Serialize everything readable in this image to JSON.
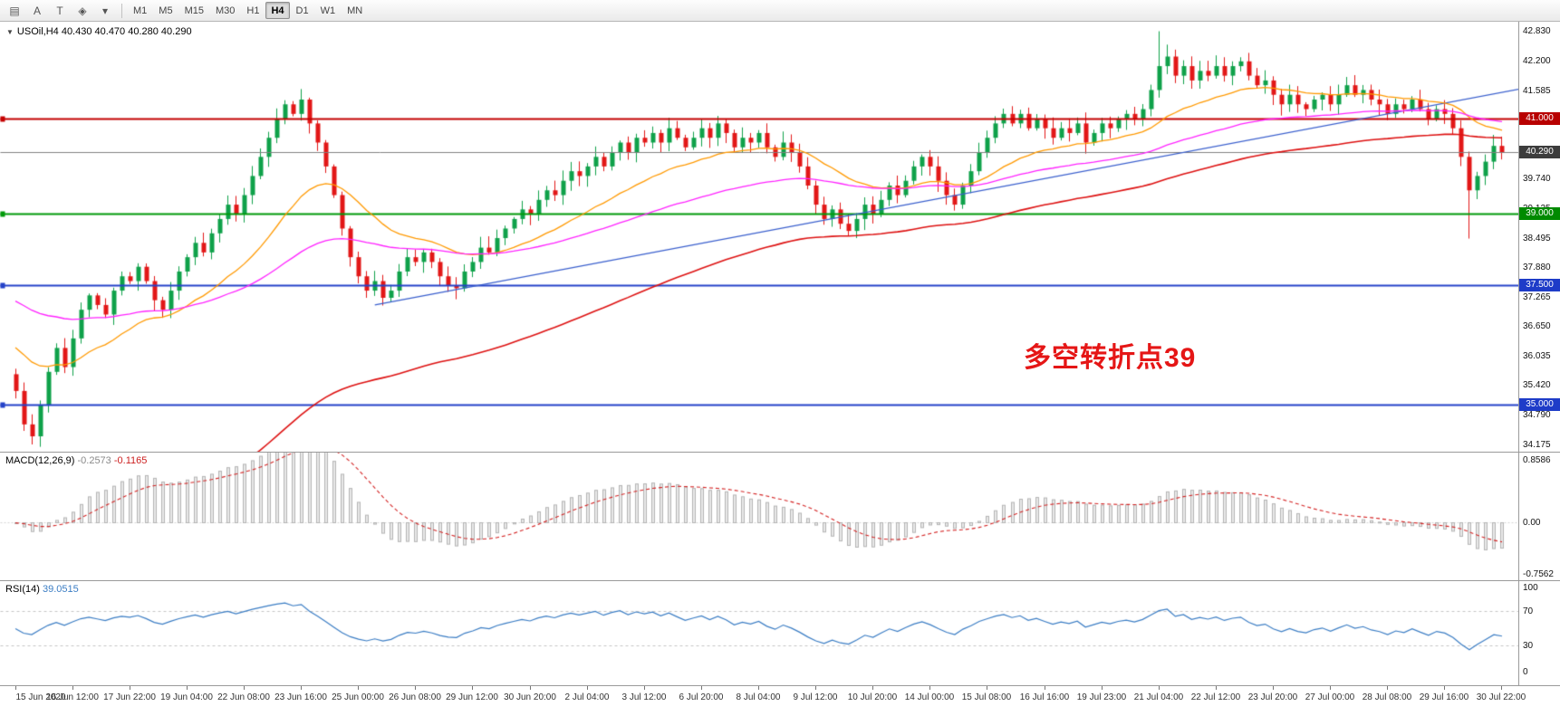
{
  "toolbar": {
    "icons": [
      {
        "name": "charts-icon",
        "glyph": "▤"
      },
      {
        "name": "cursor-a-icon",
        "glyph": "A"
      },
      {
        "name": "text-tool-icon",
        "glyph": "T"
      },
      {
        "name": "draw-objects-icon",
        "glyph": "◈"
      },
      {
        "name": "dropdown-arrow-icon",
        "glyph": "▾"
      }
    ],
    "timeframes": [
      {
        "label": "M1",
        "active": false
      },
      {
        "label": "M5",
        "active": false
      },
      {
        "label": "M15",
        "active": false
      },
      {
        "label": "M30",
        "active": false
      },
      {
        "label": "H1",
        "active": false
      },
      {
        "label": "H4",
        "active": true
      },
      {
        "label": "D1",
        "active": false
      },
      {
        "label": "W1",
        "active": false
      },
      {
        "label": "MN",
        "active": false
      }
    ]
  },
  "main_chart": {
    "legend_arrow": "▼",
    "legend_text": "USOil,H4 40.430 40.470 40.280 40.290",
    "annotation": "多空转折点39",
    "price_tags": [
      {
        "value": 41.0,
        "text": "41.000",
        "bg": "#b80000"
      },
      {
        "value": 40.29,
        "text": "40.290",
        "bg": "#3c3c3c"
      },
      {
        "value": 39.0,
        "text": "39.000",
        "bg": "#008a00"
      },
      {
        "value": 37.5,
        "text": "37.500",
        "bg": "#1e3cc8"
      },
      {
        "value": 35.0,
        "text": "35.000",
        "bg": "#1e3cc8"
      }
    ]
  },
  "macd_panel": {
    "name": "MACD(12,26,9)",
    "value1": "-0.2573",
    "value2": "-0.1165",
    "axis": [
      "0.8586",
      "0.00",
      "-0.7562"
    ]
  },
  "rsi_panel": {
    "name": "RSI(14)",
    "value": "39.0515",
    "axis": [
      {
        "text": "100",
        "v": 100
      },
      {
        "text": "70",
        "v": 70
      },
      {
        "text": "30",
        "v": 30
      },
      {
        "text": "0",
        "v": 0
      }
    ]
  },
  "chart_data": {
    "type": "candlestick",
    "symbol": "USOil",
    "timeframe": "H4",
    "last_ohlc": {
      "open": 40.43,
      "high": 40.47,
      "low": 40.28,
      "close": 40.29
    },
    "current_price": 40.29,
    "closes": [
      35.3,
      34.6,
      34.35,
      35.0,
      35.7,
      36.2,
      35.8,
      36.4,
      37.0,
      37.3,
      37.1,
      36.9,
      37.4,
      37.7,
      37.6,
      37.9,
      37.6,
      37.2,
      37.0,
      37.4,
      37.8,
      38.1,
      38.4,
      38.2,
      38.6,
      38.9,
      39.2,
      39.0,
      39.4,
      39.8,
      40.2,
      40.6,
      41.0,
      41.3,
      41.1,
      41.4,
      40.9,
      40.5,
      40.0,
      39.4,
      38.7,
      38.1,
      37.7,
      37.4,
      37.6,
      37.25,
      37.4,
      37.8,
      38.1,
      38.0,
      38.2,
      38.0,
      37.7,
      37.5,
      37.45,
      37.8,
      38.0,
      38.3,
      38.2,
      38.5,
      38.7,
      38.9,
      39.1,
      39.0,
      39.3,
      39.5,
      39.4,
      39.7,
      39.9,
      39.8,
      40.0,
      40.2,
      40.0,
      40.3,
      40.5,
      40.3,
      40.6,
      40.5,
      40.7,
      40.5,
      40.8,
      40.6,
      40.4,
      40.6,
      40.8,
      40.6,
      40.9,
      40.7,
      40.4,
      40.6,
      40.5,
      40.7,
      40.4,
      40.2,
      40.5,
      40.3,
      40.0,
      39.6,
      39.2,
      38.9,
      39.1,
      38.8,
      38.65,
      38.9,
      39.2,
      39.0,
      39.3,
      39.6,
      39.4,
      39.7,
      40.0,
      40.2,
      40.0,
      39.7,
      39.4,
      39.2,
      39.6,
      39.9,
      40.3,
      40.6,
      40.9,
      41.1,
      40.9,
      41.1,
      40.8,
      41.0,
      40.8,
      40.6,
      40.8,
      40.7,
      40.9,
      40.5,
      40.7,
      40.9,
      40.8,
      41.0,
      41.1,
      41.0,
      41.2,
      41.6,
      42.1,
      42.3,
      41.9,
      42.1,
      41.8,
      42.0,
      41.9,
      42.1,
      41.9,
      42.1,
      42.2,
      41.9,
      41.7,
      41.8,
      41.5,
      41.3,
      41.5,
      41.3,
      41.2,
      41.4,
      41.5,
      41.3,
      41.5,
      41.7,
      41.5,
      41.6,
      41.4,
      41.3,
      41.1,
      41.3,
      41.2,
      41.4,
      41.2,
      41.0,
      41.2,
      41.1,
      40.8,
      40.2,
      39.5,
      39.8,
      40.1,
      40.43,
      40.29
    ],
    "spikes": [
      {
        "i": 2,
        "low": 34.18
      },
      {
        "i": 35,
        "high": 41.62
      },
      {
        "i": 45,
        "low": 37.12
      },
      {
        "i": 54,
        "low": 37.36
      },
      {
        "i": 102,
        "low": 38.55
      },
      {
        "i": 140,
        "high": 42.83
      },
      {
        "i": 141,
        "high": 42.55
      },
      {
        "i": 178,
        "low": 38.49
      }
    ],
    "hlines": [
      {
        "price": 41.0,
        "color": "#c40000",
        "width": 2
      },
      {
        "price": 39.0,
        "color": "#009a0a",
        "width": 2
      },
      {
        "price": 37.5,
        "color": "#2442c8",
        "width": 2
      },
      {
        "price": 35.0,
        "color": "#2442c8",
        "width": 2
      }
    ],
    "trendlines": [
      {
        "i1": 44,
        "p1": 37.1,
        "i2": 186,
        "p2": 41.68,
        "color": "#3a5fcd",
        "width": 1.4
      }
    ],
    "indicators": {
      "mas": [
        {
          "period": 21,
          "seed": 36.3,
          "color": "#ff9900",
          "width": 1.3
        },
        {
          "period": 55,
          "seed": 37.25,
          "color": "#ff22ff",
          "width": 1.3
        },
        {
          "period": 90,
          "seed": 30.5,
          "color": "#dd1111",
          "width": 1.6
        }
      ],
      "macd": {
        "fast": 12,
        "slow": 26,
        "signal": 9,
        "last_macd": -0.2573,
        "last_signal": -0.1165
      },
      "rsi": {
        "period": 14,
        "last": 39.0515,
        "levels": [
          30,
          70
        ]
      }
    },
    "colors": {
      "up": "#0fa14a",
      "down": "#e21717",
      "wick_up": "#0fa14a",
      "wick_down": "#e21717",
      "current_line": "#808080",
      "macd_hist_stroke": "#b4b4b4",
      "macd_hist_fill": "#e8e8e8",
      "macd_signal": "#d42424",
      "rsi_line": "#3b7dc4",
      "level_dash": "#c6c6c6"
    },
    "y_axis": {
      "min": 34.0,
      "max": 43.02,
      "labels": [
        "42.830",
        "42.200",
        "41.585",
        "40.970",
        "40.355",
        "39.740",
        "39.125",
        "38.495",
        "37.880",
        "37.265",
        "36.650",
        "36.035",
        "35.420",
        "34.790",
        "34.175"
      ]
    },
    "x_axis": {
      "labels": [
        "15 Jun 2020",
        "16 Jun 12:00",
        "17 Jun 22:00",
        "19 Jun 04:00",
        "22 Jun 08:00",
        "23 Jun 16:00",
        "25 Jun 00:00",
        "26 Jun 08:00",
        "29 Jun 12:00",
        "30 Jun 20:00",
        "2 Jul 04:00",
        "3 Jul 12:00",
        "6 Jul 20:00",
        "8 Jul 04:00",
        "9 Jul 12:00",
        "10 Jul 20:00",
        "14 Jul 00:00",
        "15 Jul 08:00",
        "16 Jul 16:00",
        "19 Jul 23:00",
        "21 Jul 04:00",
        "22 Jul 12:00",
        "23 Jul 20:00",
        "27 Jul 00:00",
        "28 Jul 08:00",
        "29 Jul 16:00",
        "30 Jul 22:00"
      ],
      "bars_per_label": 7
    }
  }
}
